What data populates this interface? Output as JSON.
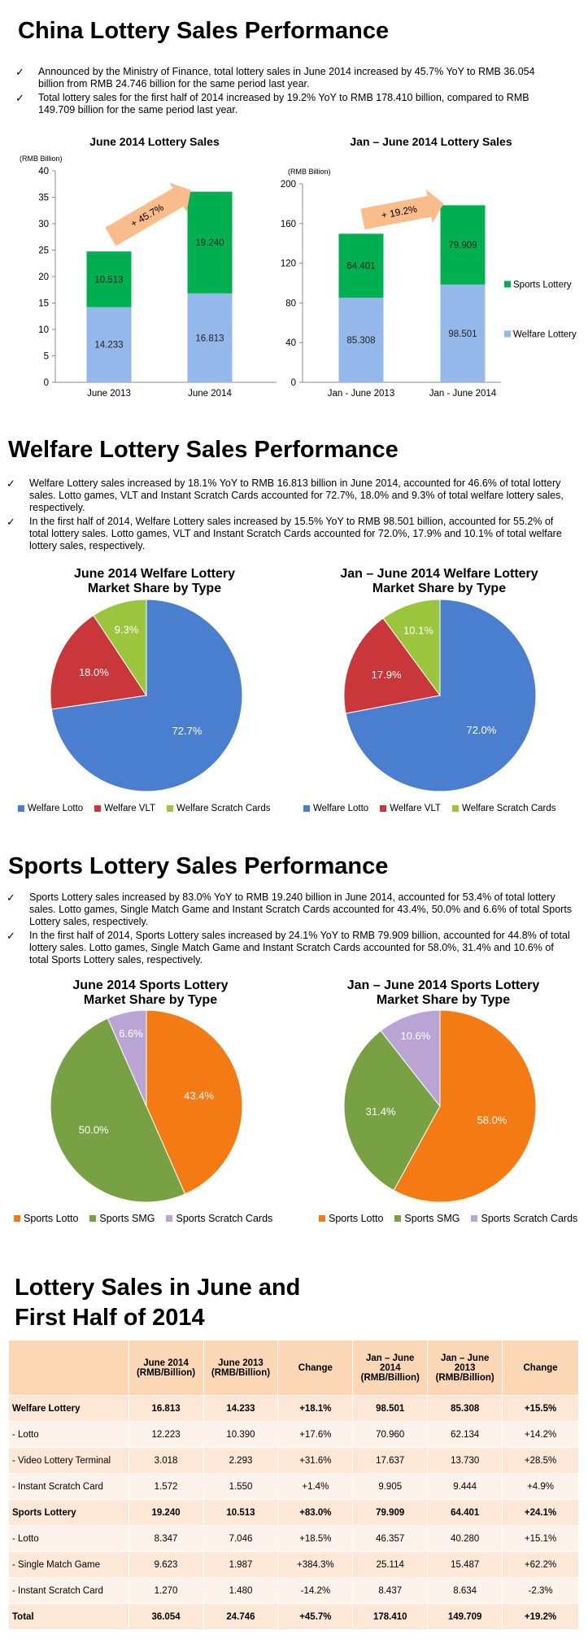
{
  "section1": {
    "title": "China Lottery Sales Performance",
    "bullets": [
      "Announced by the Ministry of Finance, total lottery sales in June 2014 increased by 45.7% YoY to RMB 36.054 billion from RMB 24.746 billion for the same period last year.",
      "Total lottery sales for the first half of 2014 increased by 19.2% YoY to RMB 178.410 billion, compared to RMB 149.709 billion for the same period last year."
    ]
  },
  "section2": {
    "title": "Welfare Lottery Sales Performance",
    "bullets": [
      "Welfare Lottery sales increased by 18.1% YoY to RMB 16.813 billion in June 2014, accounted for 46.6% of total lottery sales. Lotto games, VLT and Instant Scratch Cards accounted for 72.7%, 18.0% and 9.3% of total welfare lottery sales, respectively.",
      "In the first half of 2014, Welfare Lottery sales increased by 15.5% YoY to RMB 98.501 billion, accounted for 55.2% of total lottery sales. Lotto games, VLT and Instant Scratch Cards accounted for 72.0%, 17.9% and 10.1% of total welfare lottery sales, respectively."
    ]
  },
  "section3": {
    "title": "Sports Lottery Sales Performance",
    "bullets": [
      "Sports Lottery sales increased by 83.0% YoY to RMB 19.240 billion in June 2014, accounted for 53.4% of total lottery sales. Lotto games, Single Match Game and Instant Scratch Cards accounted for 43.4%, 50.0% and 6.6% of total Sports Lottery sales, respectively.",
      "In the first half of 2014, Sports Lottery sales increased by 24.1% YoY to RMB 79.909 billion, accounted for 44.8% of total lottery sales. Lotto games, Single Match Game and Instant Scratch Cards accounted for 58.0%, 31.4% and 10.6% of total Sports Lottery sales, respectively."
    ]
  },
  "section4": {
    "title_line1": "Lottery Sales in June and",
    "title_line2": "First Half of 2014"
  },
  "colors": {
    "sports_green": "#00b050",
    "welfare_blue": "#95b8ea",
    "arrow_orange": "#f9bc8a",
    "welfare_lotto": "#4a7fd0",
    "welfare_vlt": "#c9373a",
    "welfare_scratch": "#9bc53d",
    "sports_lotto": "#f47a14",
    "sports_smg": "#77a143",
    "sports_scratch": "#b9a4d3"
  },
  "chart_data": [
    {
      "type": "bar",
      "stacked": true,
      "title": "June 2014 Lottery Sales",
      "ylabel": "(RMB Billion)",
      "categories": [
        "June 2013",
        "June 2014"
      ],
      "series": [
        {
          "name": "Welfare Lottery",
          "values": [
            14.233,
            16.813
          ]
        },
        {
          "name": "Sports Lottery",
          "values": [
            10.513,
            19.24
          ]
        }
      ],
      "value_labels": {
        "Welfare Lottery": [
          "14.233",
          "16.813"
        ],
        "Sports Lottery": [
          "10.513",
          "19.240"
        ]
      },
      "ylim": [
        0,
        40
      ],
      "yticks": [
        0,
        5,
        10,
        15,
        20,
        25,
        30,
        35,
        40
      ],
      "annotation": "+ 45.7%",
      "grid": false
    },
    {
      "type": "bar",
      "stacked": true,
      "title": "Jan – June 2014 Lottery Sales",
      "ylabel": "(RMB Billion)",
      "categories": [
        "Jan - June 2013",
        "Jan - June 2014"
      ],
      "series": [
        {
          "name": "Welfare Lottery",
          "values": [
            85.308,
            98.501
          ]
        },
        {
          "name": "Sports Lottery",
          "values": [
            64.401,
            79.909
          ]
        }
      ],
      "value_labels": {
        "Welfare Lottery": [
          "85.308",
          "98.501"
        ],
        "Sports Lottery": [
          "64.401",
          "79.909"
        ]
      },
      "ylim": [
        0,
        200
      ],
      "yticks": [
        0,
        40,
        80,
        120,
        160,
        200
      ],
      "annotation": "+ 19.2%",
      "legend": [
        "Sports Lottery",
        "Welfare Lottery"
      ],
      "legend_position": "right",
      "grid": false
    },
    {
      "type": "pie",
      "title_line1": "June 2014 Welfare Lottery",
      "title_line2": "Market Share by Type",
      "labels": [
        "Welfare Lotto",
        "Welfare VLT",
        "Welfare Scratch Cards"
      ],
      "values": [
        72.7,
        18.0,
        9.3
      ],
      "value_labels": [
        "72.7%",
        "18.0%",
        "9.3%"
      ],
      "legend_position": "bottom"
    },
    {
      "type": "pie",
      "title_line1": "Jan – June 2014 Welfare Lottery",
      "title_line2": "Market Share by Type",
      "labels": [
        "Welfare Lotto",
        "Welfare VLT",
        "Welfare Scratch Cards"
      ],
      "values": [
        72.0,
        17.9,
        10.1
      ],
      "value_labels": [
        "72.0%",
        "17.9%",
        "10.1%"
      ],
      "legend_position": "bottom"
    },
    {
      "type": "pie",
      "title_line1": "June 2014 Sports Lottery",
      "title_line2": "Market Share by Type",
      "labels": [
        "Sports Lotto",
        "Sports SMG",
        "Sports Scratch Cards"
      ],
      "values": [
        43.4,
        50.0,
        6.6
      ],
      "value_labels": [
        "43.4%",
        "50.0%",
        "6.6%"
      ],
      "legend_position": "bottom"
    },
    {
      "type": "pie",
      "title_line1": "Jan – June 2014 Sports Lottery",
      "title_line2": "Market Share by Type",
      "labels": [
        "Sports Lotto",
        "Sports SMG",
        "Sports Scratch Cards"
      ],
      "values": [
        58.0,
        31.4,
        10.6
      ],
      "value_labels": [
        "58.0%",
        "31.4%",
        "10.6%"
      ],
      "legend_position": "bottom"
    },
    {
      "type": "table",
      "headers": [
        "",
        "June 2014 (RMB/Billion)",
        "June 2013 (RMB/Billion)",
        "Change",
        "Jan – June 2014 (RMB/Billion)",
        "Jan – June 2013 (RMB/Billion)",
        "Change"
      ],
      "rows": [
        {
          "bold": true,
          "cells": [
            "Welfare Lottery",
            "16.813",
            "14.233",
            "+18.1%",
            "98.501",
            "85.308",
            "+15.5%"
          ]
        },
        {
          "bold": false,
          "cells": [
            "- Lotto",
            "12.223",
            "10.390",
            "+17.6%",
            "70.960",
            "62.134",
            "+14.2%"
          ]
        },
        {
          "bold": false,
          "cells": [
            "- Video Lottery Terminal",
            "3.018",
            "2.293",
            "+31.6%",
            "17.637",
            "13.730",
            "+28.5%"
          ]
        },
        {
          "bold": false,
          "cells": [
            "- Instant Scratch Card",
            "1.572",
            "1.550",
            "+1.4%",
            "9.905",
            "9.444",
            "+4.9%"
          ]
        },
        {
          "bold": true,
          "cells": [
            "Sports Lottery",
            "19.240",
            "10.513",
            "+83.0%",
            "79.909",
            "64.401",
            "+24.1%"
          ]
        },
        {
          "bold": false,
          "cells": [
            "- Lotto",
            "8.347",
            "7.046",
            "+18.5%",
            "46.357",
            "40.280",
            "+15.1%"
          ]
        },
        {
          "bold": false,
          "cells": [
            "- Single Match Game",
            "9.623",
            "1.987",
            "+384.3%",
            "25.114",
            "15.487",
            "+62.2%"
          ]
        },
        {
          "bold": false,
          "cells": [
            "- Instant Scratch Card",
            "1.270",
            "1.480",
            "-14.2%",
            "8.437",
            "8.634",
            "-2.3%"
          ]
        },
        {
          "bold": true,
          "cells": [
            "Total",
            "36.054",
            "24.746",
            "+45.7%",
            "178.410",
            "149.709",
            "+19.2%"
          ]
        }
      ]
    }
  ]
}
